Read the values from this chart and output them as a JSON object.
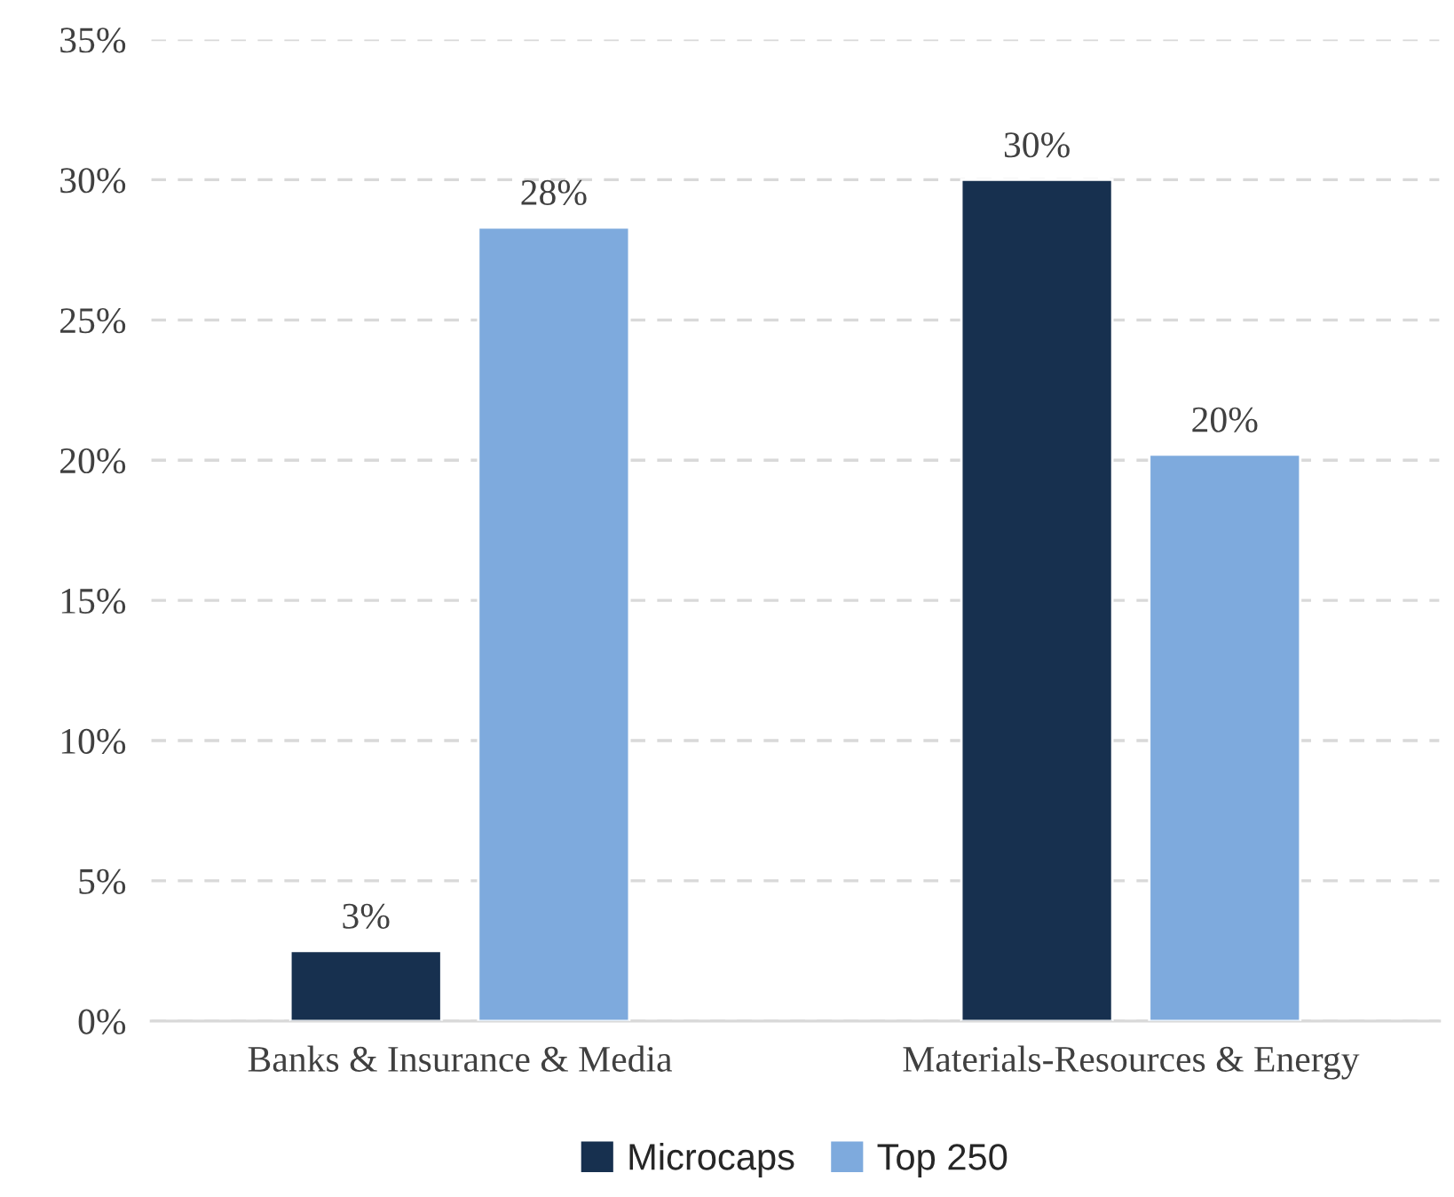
{
  "chart_data": {
    "type": "bar",
    "categories": [
      "Banks & Insurance & Media",
      "Materials-Resources & Energy"
    ],
    "series": [
      {
        "name": "Microcaps",
        "color": "#17304f",
        "values": [
          2.5,
          30
        ],
        "value_labels": [
          "3%",
          "30%"
        ]
      },
      {
        "name": "Top 250",
        "color": "#7eaadd",
        "values": [
          28.3,
          20.2
        ],
        "value_labels": [
          "28%",
          "20%"
        ]
      }
    ],
    "ylim": [
      0,
      35
    ],
    "yticks": [
      {
        "value": 0,
        "label": "0%"
      },
      {
        "value": 5,
        "label": "5%"
      },
      {
        "value": 10,
        "label": "10%"
      },
      {
        "value": 15,
        "label": "15%"
      },
      {
        "value": 20,
        "label": "20%"
      },
      {
        "value": 25,
        "label": "25%"
      },
      {
        "value": 30,
        "label": "30%"
      },
      {
        "value": 35,
        "label": "35%"
      }
    ],
    "grid": "y",
    "legend": "bottom"
  }
}
